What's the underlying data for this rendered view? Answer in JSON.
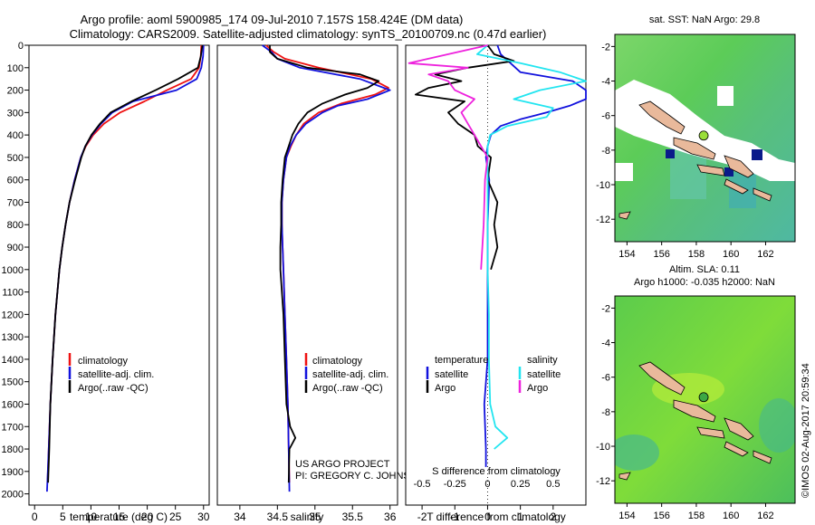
{
  "header": {
    "title_line1": "Argo profile: aoml 5900985_174 09-Jul-2010 7.157S 158.424E (DM data)",
    "title_line2": "Climatology: CARS2009. Satellite-adjusted climatology: synTS_20100709.nc (0.47d earlier)"
  },
  "colors": {
    "climatology": "#ee1111",
    "satellite": "#1111dd",
    "argo": "#000000",
    "salinity_satellite": "#22e5f0",
    "salinity_argo": "#ee22dd",
    "land": "#e9b99b"
  },
  "chart_data": [
    {
      "type": "line",
      "id": "temperature",
      "xlabel": "temperature (deg C)",
      "ylabel": "",
      "xlim": [
        -1,
        31
      ],
      "ylim": [
        2050,
        0
      ],
      "xticks": [
        0,
        5,
        10,
        15,
        20,
        25,
        30
      ],
      "yticks": [
        0,
        100,
        200,
        300,
        400,
        500,
        600,
        700,
        800,
        900,
        1000,
        1100,
        1200,
        1300,
        1400,
        1500,
        1600,
        1700,
        1800,
        1900,
        2000
      ],
      "legend": [
        "climatology",
        "satellite-adj. clim.",
        "Argo(..raw -QC)"
      ],
      "series": [
        {
          "name": "climatology",
          "color": "#ee1111",
          "depth": [
            0,
            50,
            100,
            150,
            200,
            250,
            300,
            350,
            400,
            450,
            500,
            600,
            700,
            800,
            900,
            1000,
            1200,
            1400,
            1600,
            1800,
            1950
          ],
          "values": [
            29.6,
            29.5,
            29.2,
            27.8,
            23.5,
            19.5,
            15.2,
            12.3,
            10.4,
            9.1,
            8.2,
            7.1,
            6.2,
            5.5,
            4.9,
            4.4,
            3.7,
            3.2,
            2.8,
            2.5,
            2.3
          ]
        },
        {
          "name": "satellite-adj. clim.",
          "color": "#1111dd",
          "depth": [
            0,
            50,
            100,
            150,
            200,
            250,
            300,
            350,
            400,
            450,
            500,
            600,
            700,
            800,
            900,
            1000,
            1200,
            1400,
            1600,
            1800,
            1990
          ],
          "values": [
            30.0,
            29.9,
            29.6,
            28.8,
            25.2,
            17.5,
            13.8,
            11.8,
            10.2,
            9.0,
            8.2,
            7.1,
            6.2,
            5.5,
            4.9,
            4.4,
            3.7,
            3.2,
            2.8,
            2.5,
            2.2
          ]
        },
        {
          "name": "Argo(..raw -QC)",
          "color": "#000000",
          "depth": [
            0,
            50,
            100,
            150,
            200,
            250,
            300,
            350,
            400,
            450,
            500,
            600,
            700,
            800,
            900,
            1000,
            1200,
            1400,
            1600,
            1800,
            1950
          ],
          "values": [
            29.8,
            29.5,
            29.0,
            25.5,
            21.5,
            17.2,
            13.5,
            11.6,
            10.1,
            9.0,
            8.3,
            7.2,
            6.2,
            5.5,
            4.9,
            4.4,
            3.7,
            3.2,
            2.8,
            2.6,
            2.4
          ]
        }
      ]
    },
    {
      "type": "line",
      "id": "salinity",
      "xlabel": "salinity",
      "xlim": [
        33.7,
        36.1
      ],
      "ylim": [
        2050,
        0
      ],
      "xticks": [
        34,
        34.5,
        35,
        35.5,
        36
      ],
      "xtick_labels": [
        "34",
        "34.5",
        "35",
        "35.5",
        "36"
      ],
      "legend": [
        "climatology",
        "satellite-adj. clim.",
        "Argo(..raw -QC)"
      ],
      "annotation": [
        "US ARGO PROJECT",
        "PI: GREGORY C. JOHNSON"
      ],
      "series": [
        {
          "name": "climatology",
          "color": "#ee1111",
          "depth": [
            0,
            30,
            60,
            100,
            150,
            190,
            220,
            260,
            300,
            350,
            400,
            450,
            500,
            600,
            700,
            800,
            900,
            1000,
            1200,
            1400,
            1600,
            1800,
            1950
          ],
          "values": [
            34.35,
            34.45,
            34.6,
            35.05,
            35.75,
            35.98,
            35.8,
            35.35,
            35.05,
            34.85,
            34.75,
            34.68,
            34.62,
            34.58,
            34.56,
            34.56,
            34.57,
            34.58,
            34.6,
            34.62,
            34.64,
            34.65,
            34.66
          ]
        },
        {
          "name": "satellite-adj. clim.",
          "color": "#1111dd",
          "depth": [
            0,
            30,
            60,
            100,
            150,
            200,
            240,
            270,
            300,
            350,
            400,
            450,
            500,
            600,
            700,
            800,
            900,
            1000,
            1200,
            1400,
            1600,
            1800,
            1990
          ],
          "values": [
            34.3,
            34.42,
            34.5,
            34.8,
            35.6,
            36.0,
            35.7,
            35.3,
            35.1,
            34.88,
            34.75,
            34.67,
            34.62,
            34.58,
            34.56,
            34.56,
            34.57,
            34.58,
            34.6,
            34.62,
            34.64,
            34.65,
            34.66
          ]
        },
        {
          "name": "Argo(..raw -QC)",
          "color": "#000000",
          "depth": [
            0,
            30,
            60,
            100,
            130,
            160,
            190,
            220,
            260,
            300,
            350,
            400,
            450,
            500,
            600,
            700,
            800,
            900,
            1000,
            1200,
            1400,
            1600,
            1700,
            1750,
            1800,
            1950
          ],
          "values": [
            34.4,
            34.4,
            34.5,
            34.9,
            35.6,
            35.85,
            35.7,
            35.4,
            35.1,
            34.9,
            34.78,
            34.7,
            34.65,
            34.6,
            34.57,
            34.55,
            34.55,
            34.54,
            34.54,
            34.58,
            34.6,
            34.62,
            34.67,
            34.74,
            34.66,
            34.65
          ]
        }
      ]
    },
    {
      "type": "line",
      "id": "difference",
      "xlabel": "T difference from climatology",
      "xlabel_top": "S difference from climatology",
      "xlim": [
        -2.5,
        3.0
      ],
      "ylim": [
        2050,
        0
      ],
      "xticks": [
        -2,
        -1,
        0,
        1,
        2
      ],
      "s_ticks": [
        -0.5,
        -0.25,
        0,
        0.25,
        0.5
      ],
      "s_tick_labels": [
        "-0.5",
        "-0.25",
        "0",
        "0.25",
        "0.5"
      ],
      "legend_titles": [
        "temperature",
        "salinity"
      ],
      "legend": [
        "satellite",
        "Argo",
        "satellite",
        "Argo"
      ],
      "series": [
        {
          "name": "temperature satellite",
          "color": "#1111dd",
          "depth": [
            0,
            40,
            80,
            120,
            160,
            200,
            240,
            270,
            300,
            330,
            360,
            400,
            450,
            500,
            600,
            800,
            1000,
            1200,
            1400,
            1600,
            1800,
            1880
          ],
          "values": [
            0.3,
            0.4,
            0.7,
            1.0,
            2.6,
            3.0,
            3.0,
            2.5,
            1.8,
            1.0,
            0.4,
            0.1,
            0.0,
            -0.05,
            0.05,
            0.0,
            0.0,
            0.0,
            0.0,
            -0.1,
            -0.05,
            -0.05
          ]
        },
        {
          "name": "temperature Argo",
          "color": "#000000",
          "depth": [
            0,
            40,
            70,
            100,
            130,
            160,
            190,
            220,
            250,
            300,
            350,
            400,
            450,
            500,
            600,
            700,
            800,
            900,
            1000
          ],
          "values": [
            0.0,
            0.2,
            0.8,
            -0.6,
            -1.6,
            -0.8,
            -1.8,
            -2.2,
            -0.7,
            -1.2,
            -0.9,
            -0.4,
            -0.3,
            0.1,
            0.0,
            0.3,
            0.2,
            0.3,
            0.1
          ]
        },
        {
          "name": "salinity satellite",
          "color": "#22e5f0",
          "depth": [
            0,
            40,
            80,
            120,
            160,
            200,
            240,
            280,
            320,
            360,
            400,
            450,
            500,
            600,
            800,
            1000,
            1200,
            1400,
            1600,
            1700,
            1750,
            1800
          ],
          "values": [
            0.0,
            -0.08,
            0.25,
            0.55,
            0.75,
            0.4,
            0.2,
            0.5,
            0.45,
            0.15,
            0.02,
            0.0,
            0.0,
            0.0,
            0.0,
            0.0,
            0.01,
            0.01,
            0.02,
            0.06,
            0.15,
            0.05
          ]
        },
        {
          "name": "salinity Argo",
          "color": "#ee22dd",
          "depth": [
            0,
            40,
            80,
            100,
            130,
            160,
            200,
            240,
            300,
            350,
            400,
            450,
            500,
            600,
            800,
            1000
          ],
          "values": [
            0.0,
            -0.3,
            -0.6,
            -0.15,
            -0.45,
            -0.3,
            -0.25,
            -0.1,
            -0.2,
            -0.15,
            -0.1,
            -0.05,
            0.0,
            -0.02,
            -0.03,
            -0.05
          ]
        }
      ]
    },
    {
      "type": "heatmap",
      "id": "sst_map",
      "title": "sat. SST: NaN Argo: 29.8",
      "xlim": [
        153.3,
        163.7
      ],
      "ylim": [
        -13.3,
        -1.3
      ],
      "xticks": [
        154,
        156,
        158,
        160,
        162
      ],
      "yticks": [
        -2,
        -4,
        -6,
        -8,
        -10,
        -12
      ],
      "profile_location": {
        "lon": 158.424,
        "lat": -7.157
      }
    },
    {
      "type": "heatmap",
      "id": "sla_map",
      "title": "Altim. SLA: 0.11",
      "subtitle": "Argo h1000: -0.035 h2000: NaN",
      "xlim": [
        153.3,
        163.7
      ],
      "ylim": [
        -13.3,
        -1.3
      ],
      "xticks": [
        154,
        156,
        158,
        160,
        162
      ],
      "yticks": [
        -2,
        -4,
        -6,
        -8,
        -10,
        -12
      ],
      "profile_location": {
        "lon": 158.424,
        "lat": -7.157
      }
    }
  ],
  "credit": "©IMOS 02-Aug-2017 20:59:34"
}
